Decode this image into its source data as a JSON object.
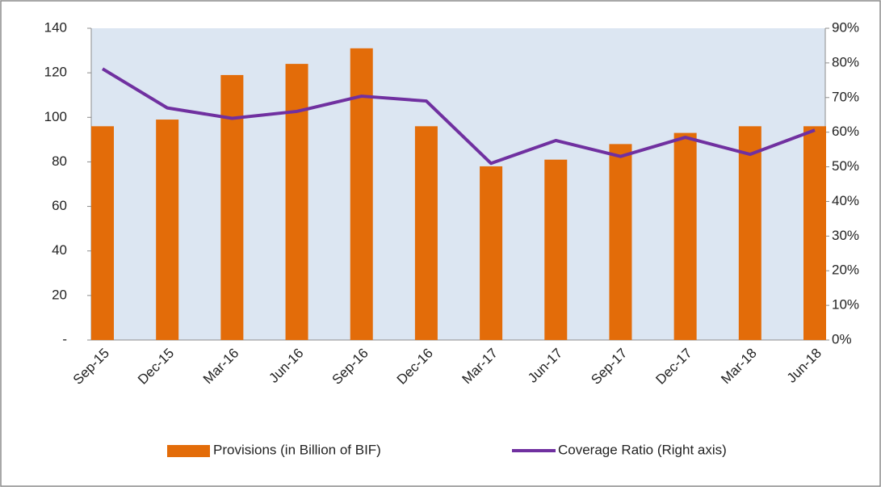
{
  "chart_data": {
    "type": "bar",
    "categories": [
      "Sep-15",
      "Dec-15",
      "Mar-16",
      "Jun-16",
      "Sep-16",
      "Dec-16",
      "Mar-17",
      "Jun-17",
      "Sep-17",
      "Dec-17",
      "Mar-18",
      "Jun-18"
    ],
    "series": [
      {
        "name": "Provisions (in Billion of BIF)",
        "type": "bar",
        "color": "#e36c09",
        "values": [
          96,
          99,
          119,
          124,
          131,
          96,
          78,
          81,
          88,
          93,
          96,
          96
        ]
      },
      {
        "name": "Coverage Ratio (Right axis)",
        "type": "line",
        "axis": "y2",
        "color": "#7030a0",
        "values": [
          78.3,
          67,
          64,
          66,
          70.4,
          69,
          51,
          57.6,
          53,
          58.5,
          53.6,
          60.6
        ]
      }
    ],
    "ylim": [
      0,
      140
    ],
    "yticks": [
      {
        "value": 0,
        "label": "-"
      },
      20,
      40,
      60,
      80,
      100,
      120,
      140
    ],
    "y2lim": [
      0,
      90
    ],
    "y2ticks": [
      {
        "value": 0,
        "label": "0%"
      },
      {
        "value": 10,
        "label": "10%"
      },
      {
        "value": 20,
        "label": "20%"
      },
      {
        "value": 30,
        "label": "30%"
      },
      {
        "value": 40,
        "label": "40%"
      },
      {
        "value": 50,
        "label": "50%"
      },
      {
        "value": 60,
        "label": "60%"
      },
      {
        "value": 70,
        "label": "70%"
      },
      {
        "value": 80,
        "label": "80%"
      },
      {
        "value": 90,
        "label": "90%"
      }
    ],
    "plot_background": "#dce6f2",
    "legend": "bottom"
  }
}
